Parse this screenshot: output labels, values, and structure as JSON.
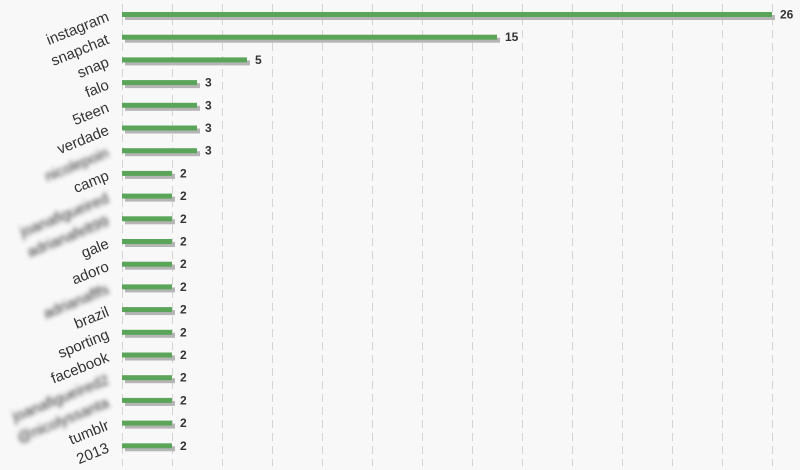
{
  "chart_data": {
    "type": "bar",
    "orientation": "horizontal",
    "categories": [
      "instagram",
      "snapchat",
      "snap",
      "falo",
      "5teen",
      "verdade",
      "nicolepoin",
      "camp",
      "joanafigueired",
      "adrianafelt99",
      "gale",
      "adoro",
      "adrianaflfs",
      "brazil",
      "sporting",
      "facebook",
      "joanafigueired2",
      "@nicolyssanta",
      "tumblr",
      "2013"
    ],
    "blurred": [
      false,
      false,
      false,
      false,
      false,
      false,
      true,
      false,
      true,
      true,
      false,
      false,
      true,
      false,
      false,
      false,
      true,
      true,
      false,
      false
    ],
    "values": [
      26,
      15,
      5,
      3,
      3,
      3,
      3,
      2,
      2,
      2,
      2,
      2,
      2,
      2,
      2,
      2,
      2,
      2,
      2,
      2
    ],
    "xlim": [
      0,
      27
    ],
    "grid": true,
    "colors": {
      "bar": "#5aa55a",
      "bar_shadow": "#b5b5b5",
      "grid": "#d4d4d4",
      "background": "#f8f8f8",
      "text": "#333333"
    }
  }
}
